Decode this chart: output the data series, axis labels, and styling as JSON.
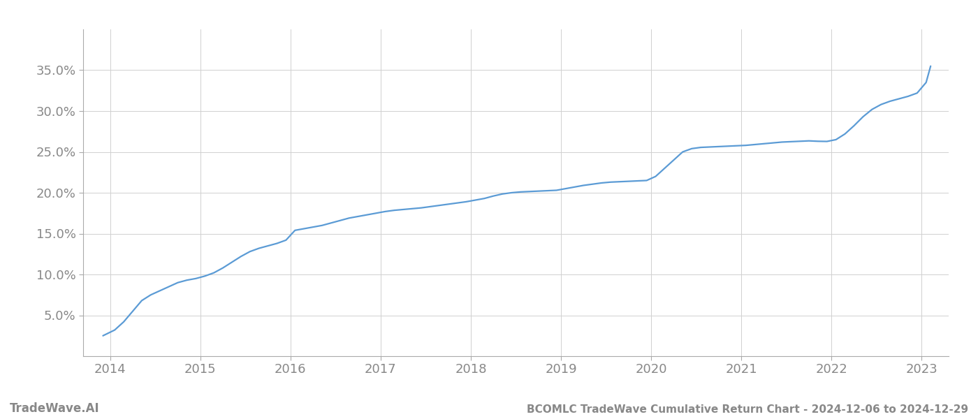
{
  "title": "BCOMLC TradeWave Cumulative Return Chart - 2024-12-06 to 2024-12-29",
  "watermark": "TradeWave.AI",
  "line_color": "#5b9bd5",
  "background_color": "#ffffff",
  "grid_color": "#d0d0d0",
  "x_years": [
    2013.92,
    2014.05,
    2014.15,
    2014.25,
    2014.35,
    2014.45,
    2014.55,
    2014.65,
    2014.75,
    2014.85,
    2014.95,
    2015.05,
    2015.15,
    2015.25,
    2015.35,
    2015.45,
    2015.55,
    2015.65,
    2015.75,
    2015.85,
    2015.95,
    2016.05,
    2016.15,
    2016.25,
    2016.35,
    2016.45,
    2016.55,
    2016.65,
    2016.75,
    2016.85,
    2016.95,
    2017.05,
    2017.15,
    2017.25,
    2017.35,
    2017.45,
    2017.55,
    2017.65,
    2017.75,
    2017.85,
    2017.95,
    2018.05,
    2018.15,
    2018.25,
    2018.35,
    2018.45,
    2018.55,
    2018.65,
    2018.75,
    2018.85,
    2018.95,
    2019.05,
    2019.15,
    2019.25,
    2019.35,
    2019.45,
    2019.55,
    2019.65,
    2019.75,
    2019.85,
    2019.95,
    2020.05,
    2020.15,
    2020.25,
    2020.35,
    2020.45,
    2020.55,
    2020.65,
    2020.75,
    2020.85,
    2020.95,
    2021.05,
    2021.15,
    2021.25,
    2021.35,
    2021.45,
    2021.55,
    2021.65,
    2021.75,
    2021.85,
    2021.95,
    2022.05,
    2022.15,
    2022.25,
    2022.35,
    2022.45,
    2022.55,
    2022.65,
    2022.75,
    2022.85,
    2022.95,
    2023.05,
    2023.1
  ],
  "y_values": [
    2.5,
    3.2,
    4.2,
    5.5,
    6.8,
    7.5,
    8.0,
    8.5,
    9.0,
    9.3,
    9.5,
    9.8,
    10.2,
    10.8,
    11.5,
    12.2,
    12.8,
    13.2,
    13.5,
    13.8,
    14.2,
    15.4,
    15.6,
    15.8,
    16.0,
    16.3,
    16.6,
    16.9,
    17.1,
    17.3,
    17.5,
    17.7,
    17.85,
    17.95,
    18.05,
    18.15,
    18.3,
    18.45,
    18.6,
    18.75,
    18.9,
    19.1,
    19.3,
    19.6,
    19.85,
    20.0,
    20.1,
    20.15,
    20.2,
    20.25,
    20.3,
    20.5,
    20.7,
    20.9,
    21.05,
    21.2,
    21.3,
    21.35,
    21.4,
    21.45,
    21.5,
    22.0,
    23.0,
    24.0,
    25.0,
    25.4,
    25.55,
    25.6,
    25.65,
    25.7,
    25.75,
    25.8,
    25.9,
    26.0,
    26.1,
    26.2,
    26.25,
    26.3,
    26.35,
    26.3,
    26.28,
    26.5,
    27.2,
    28.2,
    29.3,
    30.2,
    30.8,
    31.2,
    31.5,
    31.8,
    32.2,
    33.5,
    35.5
  ],
  "xlim": [
    2013.7,
    2023.3
  ],
  "ylim": [
    0,
    40
  ],
  "yticks": [
    5.0,
    10.0,
    15.0,
    20.0,
    25.0,
    30.0,
    35.0
  ],
  "xticks": [
    2014,
    2015,
    2016,
    2017,
    2018,
    2019,
    2020,
    2021,
    2022,
    2023
  ],
  "title_fontsize": 11,
  "watermark_fontsize": 12,
  "tick_label_color": "#888888",
  "line_width": 1.6
}
